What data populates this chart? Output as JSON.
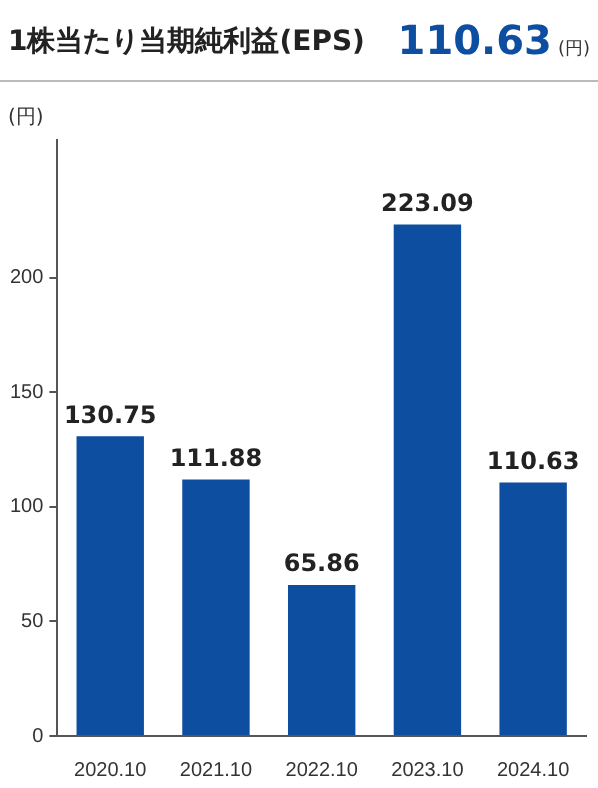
{
  "chart_data": {
    "type": "bar",
    "title": "1株当たり当期純利益(EPS)",
    "annotations": [
      "110.63",
      "(円)"
    ],
    "ylabel": "(円)",
    "categories": [
      "2020.10",
      "2021.10",
      "2022.10",
      "2023.10",
      "2024.10"
    ],
    "values": [
      130.75,
      111.88,
      65.86,
      223.09,
      110.63
    ],
    "color": "#0d4ea0",
    "ylim": [
      0,
      260
    ],
    "yticks": [
      0,
      50,
      100,
      150,
      200
    ],
    "data_labels": true,
    "legend": false
  }
}
